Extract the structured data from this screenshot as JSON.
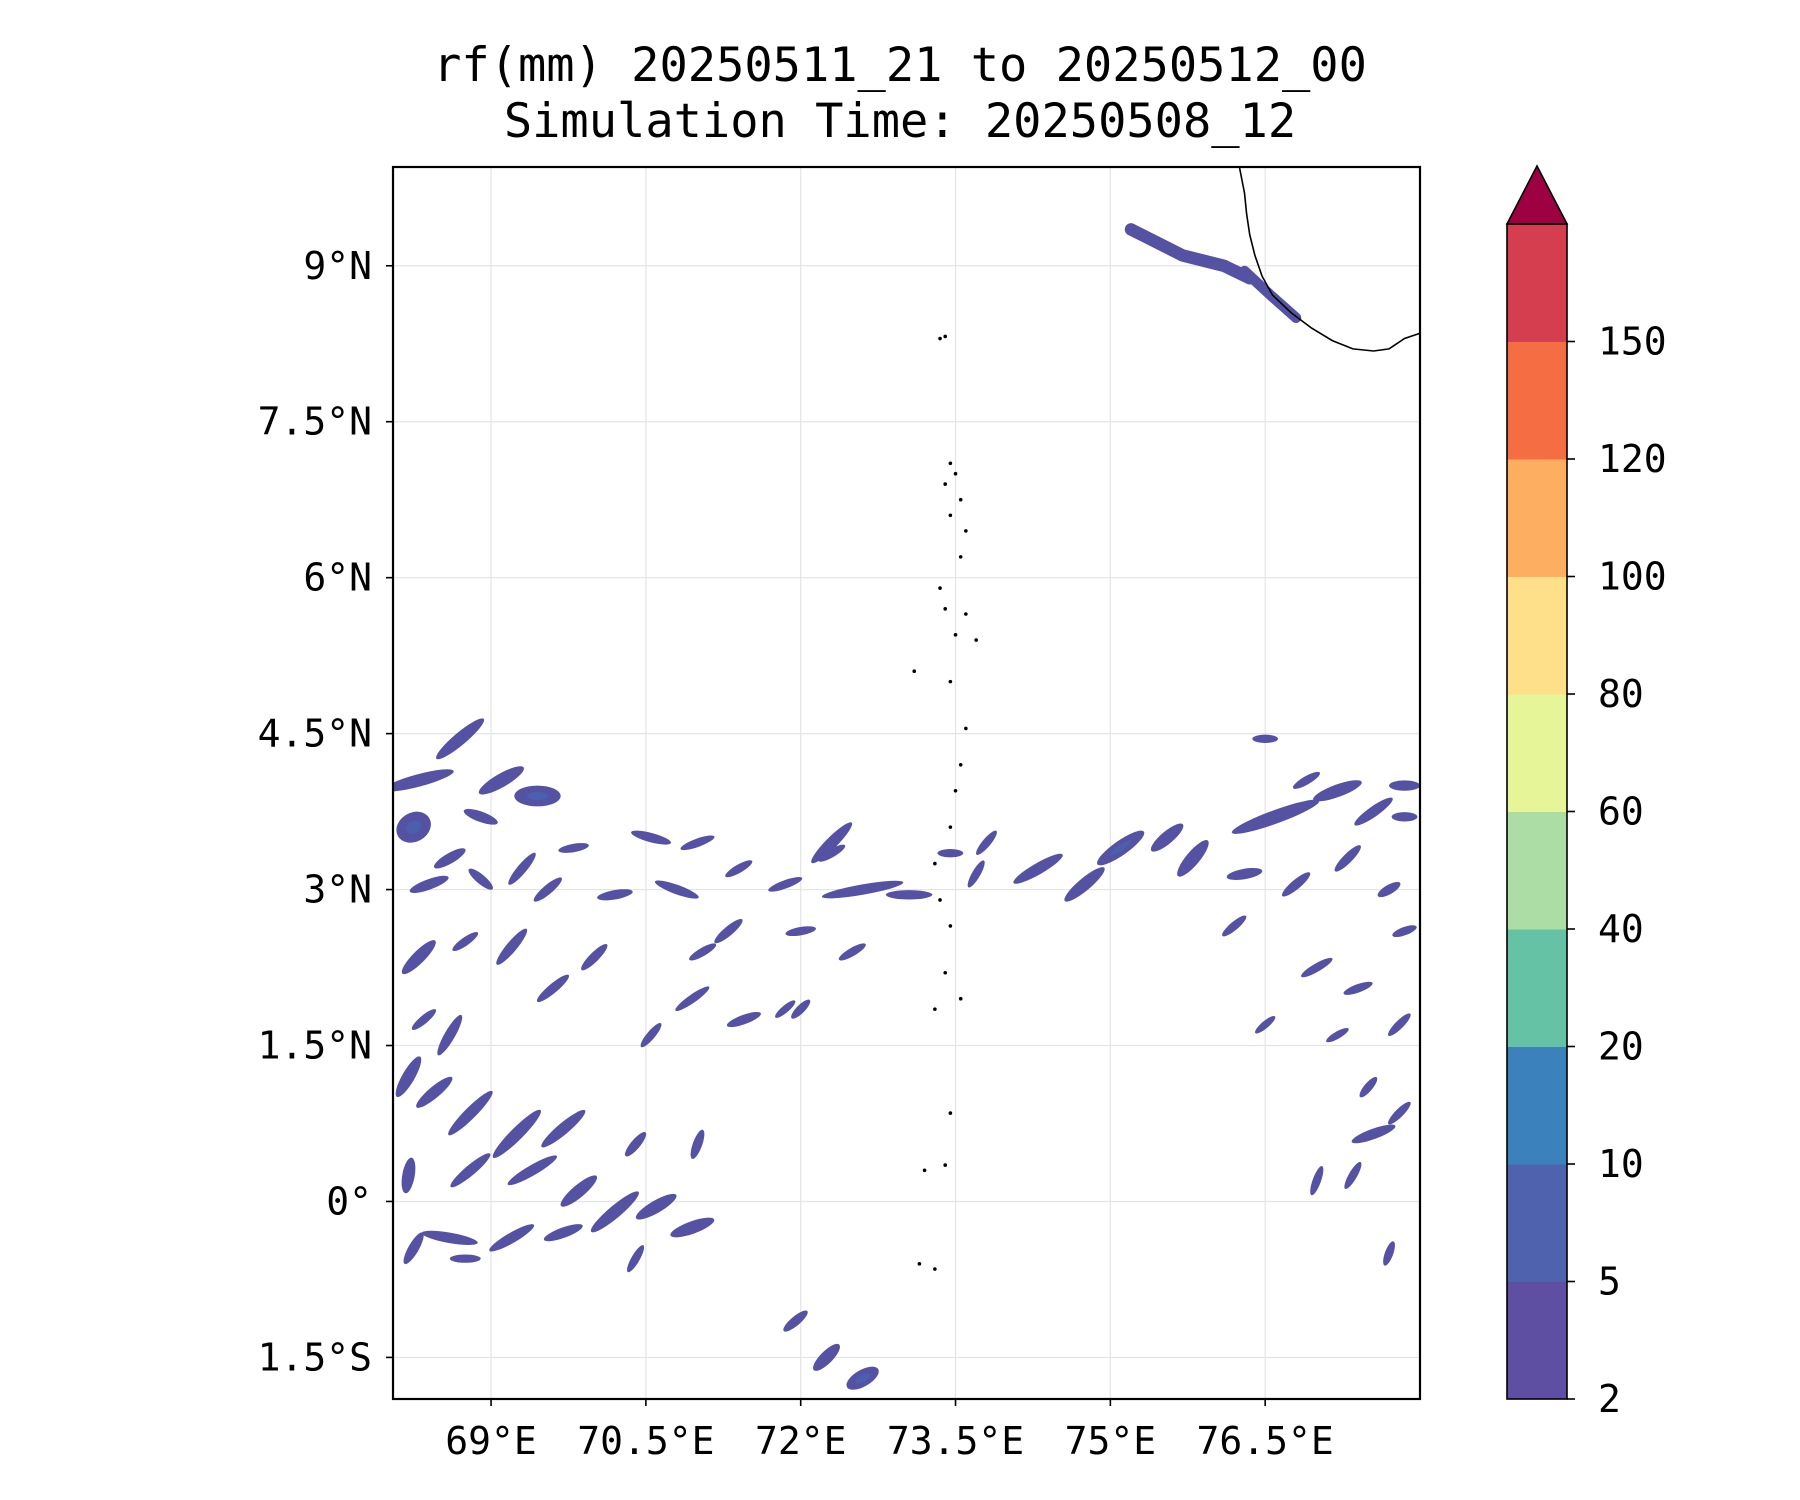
{
  "title": {
    "line1": "rf(mm) 20250511_21 to 20250512_00",
    "line2": "Simulation Time: 20250508_12"
  },
  "map": {
    "lon_range": [
      68.05,
      78.0
    ],
    "lat_range": [
      -1.9,
      9.95
    ],
    "x_ticks": [
      {
        "value": 69,
        "label": "69°E"
      },
      {
        "value": 70.5,
        "label": "70.5°E"
      },
      {
        "value": 72,
        "label": "72°E"
      },
      {
        "value": 73.5,
        "label": "73.5°E"
      },
      {
        "value": 75,
        "label": "75°E"
      },
      {
        "value": 76.5,
        "label": "76.5°E"
      }
    ],
    "y_ticks": [
      {
        "value": 9,
        "label": "9°N"
      },
      {
        "value": 7.5,
        "label": "7.5°N"
      },
      {
        "value": 6,
        "label": "6°N"
      },
      {
        "value": 4.5,
        "label": "4.5°N"
      },
      {
        "value": 3,
        "label": "3°N"
      },
      {
        "value": 1.5,
        "label": "1.5°N"
      },
      {
        "value": 0,
        "label": "0°"
      },
      {
        "value": -1.5,
        "label": "1.5°S"
      }
    ],
    "gridlines": true,
    "rain_color": "#5552a3",
    "rain_color_dark": "#4a5fae",
    "rain_color_core": "#3a7eb8",
    "rain_cells": [
      {
        "lon": 68.3,
        "lat": 4.05,
        "len": 0.7,
        "wid": 0.12,
        "ang": -15
      },
      {
        "lon": 68.25,
        "lat": 3.6,
        "len": 0.35,
        "wid": 0.28,
        "ang": -30
      },
      {
        "lon": 68.7,
        "lat": 4.45,
        "len": 0.6,
        "wid": 0.12,
        "ang": -40
      },
      {
        "lon": 69.1,
        "lat": 4.05,
        "len": 0.5,
        "wid": 0.13,
        "ang": -30
      },
      {
        "lon": 69.45,
        "lat": 3.9,
        "len": 0.45,
        "wid": 0.2,
        "ang": 0
      },
      {
        "lon": 68.9,
        "lat": 3.7,
        "len": 0.35,
        "wid": 0.1,
        "ang": 20
      },
      {
        "lon": 68.6,
        "lat": 3.3,
        "len": 0.35,
        "wid": 0.1,
        "ang": -30
      },
      {
        "lon": 68.4,
        "lat": 3.05,
        "len": 0.4,
        "wid": 0.1,
        "ang": -20
      },
      {
        "lon": 68.9,
        "lat": 3.1,
        "len": 0.3,
        "wid": 0.09,
        "ang": 40
      },
      {
        "lon": 69.3,
        "lat": 3.2,
        "len": 0.4,
        "wid": 0.09,
        "ang": -50
      },
      {
        "lon": 69.55,
        "lat": 3.0,
        "len": 0.35,
        "wid": 0.09,
        "ang": -40
      },
      {
        "lon": 68.3,
        "lat": 2.35,
        "len": 0.45,
        "wid": 0.12,
        "ang": -45
      },
      {
        "lon": 68.75,
        "lat": 2.5,
        "len": 0.3,
        "wid": 0.08,
        "ang": -35
      },
      {
        "lon": 69.2,
        "lat": 2.45,
        "len": 0.45,
        "wid": 0.1,
        "ang": -50
      },
      {
        "lon": 69.6,
        "lat": 2.05,
        "len": 0.4,
        "wid": 0.09,
        "ang": -40
      },
      {
        "lon": 70.0,
        "lat": 2.35,
        "len": 0.35,
        "wid": 0.09,
        "ang": -45
      },
      {
        "lon": 70.2,
        "lat": 2.95,
        "len": 0.35,
        "wid": 0.09,
        "ang": -10
      },
      {
        "lon": 70.55,
        "lat": 3.5,
        "len": 0.4,
        "wid": 0.09,
        "ang": 15
      },
      {
        "lon": 70.8,
        "lat": 3.0,
        "len": 0.45,
        "wid": 0.09,
        "ang": 20
      },
      {
        "lon": 71.0,
        "lat": 3.45,
        "len": 0.35,
        "wid": 0.08,
        "ang": -20
      },
      {
        "lon": 71.3,
        "lat": 2.6,
        "len": 0.35,
        "wid": 0.09,
        "ang": -40
      },
      {
        "lon": 71.4,
        "lat": 3.2,
        "len": 0.3,
        "wid": 0.08,
        "ang": -30
      },
      {
        "lon": 70.55,
        "lat": 1.6,
        "len": 0.3,
        "wid": 0.08,
        "ang": -50
      },
      {
        "lon": 70.95,
        "lat": 1.95,
        "len": 0.4,
        "wid": 0.08,
        "ang": -35
      },
      {
        "lon": 71.45,
        "lat": 1.75,
        "len": 0.35,
        "wid": 0.09,
        "ang": -20
      },
      {
        "lon": 71.05,
        "lat": 2.4,
        "len": 0.3,
        "wid": 0.08,
        "ang": -30
      },
      {
        "lon": 72.3,
        "lat": 3.45,
        "len": 0.55,
        "wid": 0.11,
        "ang": -45
      },
      {
        "lon": 72.6,
        "lat": 3.0,
        "len": 0.8,
        "wid": 0.1,
        "ang": -10
      },
      {
        "lon": 73.05,
        "lat": 2.95,
        "len": 0.45,
        "wid": 0.09,
        "ang": 0
      },
      {
        "lon": 71.85,
        "lat": 3.05,
        "len": 0.35,
        "wid": 0.08,
        "ang": -20
      },
      {
        "lon": 72.0,
        "lat": 2.6,
        "len": 0.3,
        "wid": 0.08,
        "ang": -10
      },
      {
        "lon": 72.5,
        "lat": 2.4,
        "len": 0.3,
        "wid": 0.08,
        "ang": -30
      },
      {
        "lon": 72.0,
        "lat": 1.85,
        "len": 0.25,
        "wid": 0.08,
        "ang": -45
      },
      {
        "lon": 73.7,
        "lat": 3.15,
        "len": 0.3,
        "wid": 0.08,
        "ang": -60
      },
      {
        "lon": 73.45,
        "lat": 3.35,
        "len": 0.25,
        "wid": 0.08,
        "ang": 0
      },
      {
        "lon": 73.8,
        "lat": 3.45,
        "len": 0.3,
        "wid": 0.08,
        "ang": -50
      },
      {
        "lon": 74.3,
        "lat": 3.2,
        "len": 0.55,
        "wid": 0.11,
        "ang": -30
      },
      {
        "lon": 74.75,
        "lat": 3.05,
        "len": 0.5,
        "wid": 0.12,
        "ang": -40
      },
      {
        "lon": 75.1,
        "lat": 3.4,
        "len": 0.55,
        "wid": 0.14,
        "ang": -35
      },
      {
        "lon": 75.55,
        "lat": 3.5,
        "len": 0.4,
        "wid": 0.12,
        "ang": -40
      },
      {
        "lon": 75.8,
        "lat": 3.3,
        "len": 0.45,
        "wid": 0.13,
        "ang": -50
      },
      {
        "lon": 76.6,
        "lat": 3.7,
        "len": 0.9,
        "wid": 0.13,
        "ang": -20
      },
      {
        "lon": 76.3,
        "lat": 3.15,
        "len": 0.35,
        "wid": 0.1,
        "ang": -10
      },
      {
        "lon": 76.8,
        "lat": 3.05,
        "len": 0.35,
        "wid": 0.09,
        "ang": -40
      },
      {
        "lon": 77.2,
        "lat": 3.95,
        "len": 0.5,
        "wid": 0.12,
        "ang": -20
      },
      {
        "lon": 77.55,
        "lat": 3.75,
        "len": 0.45,
        "wid": 0.1,
        "ang": -35
      },
      {
        "lon": 77.3,
        "lat": 3.3,
        "len": 0.35,
        "wid": 0.09,
        "ang": -45
      },
      {
        "lon": 77.85,
        "lat": 4.0,
        "len": 0.3,
        "wid": 0.1,
        "ang": 0
      },
      {
        "lon": 77.85,
        "lat": 3.7,
        "len": 0.25,
        "wid": 0.09,
        "ang": 0
      },
      {
        "lon": 77.7,
        "lat": 3.0,
        "len": 0.25,
        "wid": 0.09,
        "ang": -30
      },
      {
        "lon": 77.85,
        "lat": 2.6,
        "len": 0.25,
        "wid": 0.08,
        "ang": -20
      },
      {
        "lon": 76.5,
        "lat": 4.45,
        "len": 0.25,
        "wid": 0.08,
        "ang": 0
      },
      {
        "lon": 76.9,
        "lat": 4.05,
        "len": 0.3,
        "wid": 0.08,
        "ang": -30
      },
      {
        "lon": 76.2,
        "lat": 2.65,
        "len": 0.3,
        "wid": 0.08,
        "ang": -40
      },
      {
        "lon": 77.0,
        "lat": 2.25,
        "len": 0.35,
        "wid": 0.08,
        "ang": -30
      },
      {
        "lon": 77.4,
        "lat": 2.05,
        "len": 0.3,
        "wid": 0.08,
        "ang": -20
      },
      {
        "lon": 76.5,
        "lat": 1.7,
        "len": 0.25,
        "wid": 0.07,
        "ang": -40
      },
      {
        "lon": 77.2,
        "lat": 1.6,
        "len": 0.25,
        "wid": 0.07,
        "ang": -30
      },
      {
        "lon": 77.8,
        "lat": 1.7,
        "len": 0.3,
        "wid": 0.08,
        "ang": -45
      },
      {
        "lon": 77.5,
        "lat": 1.1,
        "len": 0.25,
        "wid": 0.08,
        "ang": -50
      },
      {
        "lon": 77.8,
        "lat": 0.85,
        "len": 0.3,
        "wid": 0.08,
        "ang": -45
      },
      {
        "lon": 77.55,
        "lat": 0.65,
        "len": 0.45,
        "wid": 0.1,
        "ang": -20
      },
      {
        "lon": 77.35,
        "lat": 0.25,
        "len": 0.3,
        "wid": 0.08,
        "ang": -60
      },
      {
        "lon": 77.0,
        "lat": 0.2,
        "len": 0.3,
        "wid": 0.08,
        "ang": -70
      },
      {
        "lon": 77.7,
        "lat": -0.5,
        "len": 0.25,
        "wid": 0.08,
        "ang": -70
      },
      {
        "lon": 68.2,
        "lat": 1.2,
        "len": 0.45,
        "wid": 0.12,
        "ang": -60
      },
      {
        "lon": 68.45,
        "lat": 1.05,
        "len": 0.45,
        "wid": 0.11,
        "ang": -40
      },
      {
        "lon": 68.8,
        "lat": 0.85,
        "len": 0.6,
        "wid": 0.11,
        "ang": -45
      },
      {
        "lon": 69.25,
        "lat": 0.65,
        "len": 0.65,
        "wid": 0.12,
        "ang": -45
      },
      {
        "lon": 69.7,
        "lat": 0.7,
        "len": 0.55,
        "wid": 0.11,
        "ang": -40
      },
      {
        "lon": 69.4,
        "lat": 0.3,
        "len": 0.55,
        "wid": 0.1,
        "ang": -30
      },
      {
        "lon": 68.8,
        "lat": 0.3,
        "len": 0.5,
        "wid": 0.1,
        "ang": -40
      },
      {
        "lon": 68.2,
        "lat": 0.25,
        "len": 0.35,
        "wid": 0.12,
        "ang": -80
      },
      {
        "lon": 69.85,
        "lat": 0.1,
        "len": 0.45,
        "wid": 0.12,
        "ang": -40
      },
      {
        "lon": 70.2,
        "lat": -0.1,
        "len": 0.6,
        "wid": 0.12,
        "ang": -40
      },
      {
        "lon": 70.6,
        "lat": -0.05,
        "len": 0.45,
        "wid": 0.12,
        "ang": -30
      },
      {
        "lon": 70.95,
        "lat": -0.25,
        "len": 0.45,
        "wid": 0.12,
        "ang": -20
      },
      {
        "lon": 70.4,
        "lat": 0.55,
        "len": 0.3,
        "wid": 0.09,
        "ang": -50
      },
      {
        "lon": 71.0,
        "lat": 0.55,
        "len": 0.3,
        "wid": 0.09,
        "ang": -70
      },
      {
        "lon": 68.6,
        "lat": -0.35,
        "len": 0.55,
        "wid": 0.1,
        "ang": 10
      },
      {
        "lon": 69.2,
        "lat": -0.35,
        "len": 0.5,
        "wid": 0.1,
        "ang": -30
      },
      {
        "lon": 69.7,
        "lat": -0.3,
        "len": 0.4,
        "wid": 0.1,
        "ang": -20
      },
      {
        "lon": 68.25,
        "lat": -0.45,
        "len": 0.35,
        "wid": 0.1,
        "ang": -60
      },
      {
        "lon": 68.75,
        "lat": -0.55,
        "len": 0.3,
        "wid": 0.08,
        "ang": 0
      },
      {
        "lon": 70.4,
        "lat": -0.55,
        "len": 0.3,
        "wid": 0.08,
        "ang": -60
      },
      {
        "lon": 72.25,
        "lat": -1.5,
        "len": 0.35,
        "wid": 0.12,
        "ang": -45
      },
      {
        "lon": 72.6,
        "lat": -1.7,
        "len": 0.35,
        "wid": 0.16,
        "ang": -30
      },
      {
        "lon": 71.95,
        "lat": -1.15,
        "len": 0.3,
        "wid": 0.09,
        "ang": -40
      },
      {
        "lon": 68.6,
        "lat": 1.6,
        "len": 0.45,
        "wid": 0.1,
        "ang": -60
      },
      {
        "lon": 68.35,
        "lat": 1.75,
        "len": 0.3,
        "wid": 0.08,
        "ang": -40
      },
      {
        "lon": 72.3,
        "lat": 3.35,
        "len": 0.3,
        "wid": 0.08,
        "ang": -30
      },
      {
        "lon": 69.8,
        "lat": 3.4,
        "len": 0.3,
        "wid": 0.08,
        "ang": -10
      },
      {
        "lon": 71.85,
        "lat": 1.85,
        "len": 0.25,
        "wid": 0.07,
        "ang": -40
      }
    ],
    "rain_bands": [
      {
        "points": [
          [
            75.2,
            9.35
          ],
          [
            75.7,
            9.1
          ],
          [
            76.1,
            9.0
          ],
          [
            76.35,
            8.88
          ]
        ],
        "wid": 0.12
      },
      {
        "points": [
          [
            76.3,
            8.95
          ],
          [
            76.55,
            8.72
          ],
          [
            76.8,
            8.5
          ]
        ],
        "wid": 0.1
      }
    ],
    "coastline": [
      [
        76.25,
        9.95
      ],
      [
        76.3,
        9.7
      ],
      [
        76.32,
        9.5
      ],
      [
        76.35,
        9.3
      ],
      [
        76.4,
        9.1
      ],
      [
        76.47,
        8.9
      ],
      [
        76.57,
        8.72
      ],
      [
        76.75,
        8.55
      ],
      [
        76.95,
        8.4
      ],
      [
        77.15,
        8.28
      ],
      [
        77.35,
        8.2
      ],
      [
        77.55,
        8.18
      ],
      [
        77.7,
        8.2
      ],
      [
        77.85,
        8.3
      ],
      [
        78.0,
        8.35
      ]
    ],
    "islands": [
      [
        73.35,
        8.3
      ],
      [
        73.4,
        8.32
      ],
      [
        73.45,
        7.1
      ],
      [
        73.5,
        7.0
      ],
      [
        73.4,
        6.9
      ],
      [
        73.55,
        6.75
      ],
      [
        73.45,
        6.6
      ],
      [
        73.6,
        6.45
      ],
      [
        73.55,
        6.2
      ],
      [
        73.35,
        5.9
      ],
      [
        73.4,
        5.7
      ],
      [
        73.6,
        5.65
      ],
      [
        73.5,
        5.45
      ],
      [
        73.7,
        5.4
      ],
      [
        73.1,
        5.1
      ],
      [
        73.45,
        5.0
      ],
      [
        73.6,
        4.55
      ],
      [
        73.55,
        4.2
      ],
      [
        73.5,
        3.95
      ],
      [
        73.45,
        3.6
      ],
      [
        73.3,
        3.25
      ],
      [
        73.35,
        2.9
      ],
      [
        73.45,
        2.65
      ],
      [
        73.4,
        2.2
      ],
      [
        73.3,
        1.85
      ],
      [
        73.55,
        1.95
      ],
      [
        73.45,
        0.85
      ],
      [
        73.4,
        0.35
      ],
      [
        73.2,
        0.3
      ],
      [
        73.3,
        -0.65
      ],
      [
        73.15,
        -0.6
      ]
    ],
    "colorbar": {
      "levels": [
        "2",
        "5",
        "10",
        "20",
        "40",
        "60",
        "80",
        "100",
        "120",
        "150"
      ],
      "colors": [
        "#5e4fa2",
        "#4f62ad",
        "#3b82bd",
        "#66c2a5",
        "#abdda4",
        "#e6f598",
        "#fee08b",
        "#fdae61",
        "#f46d43",
        "#d53e4f"
      ],
      "extend_color": "#9e0142"
    }
  }
}
